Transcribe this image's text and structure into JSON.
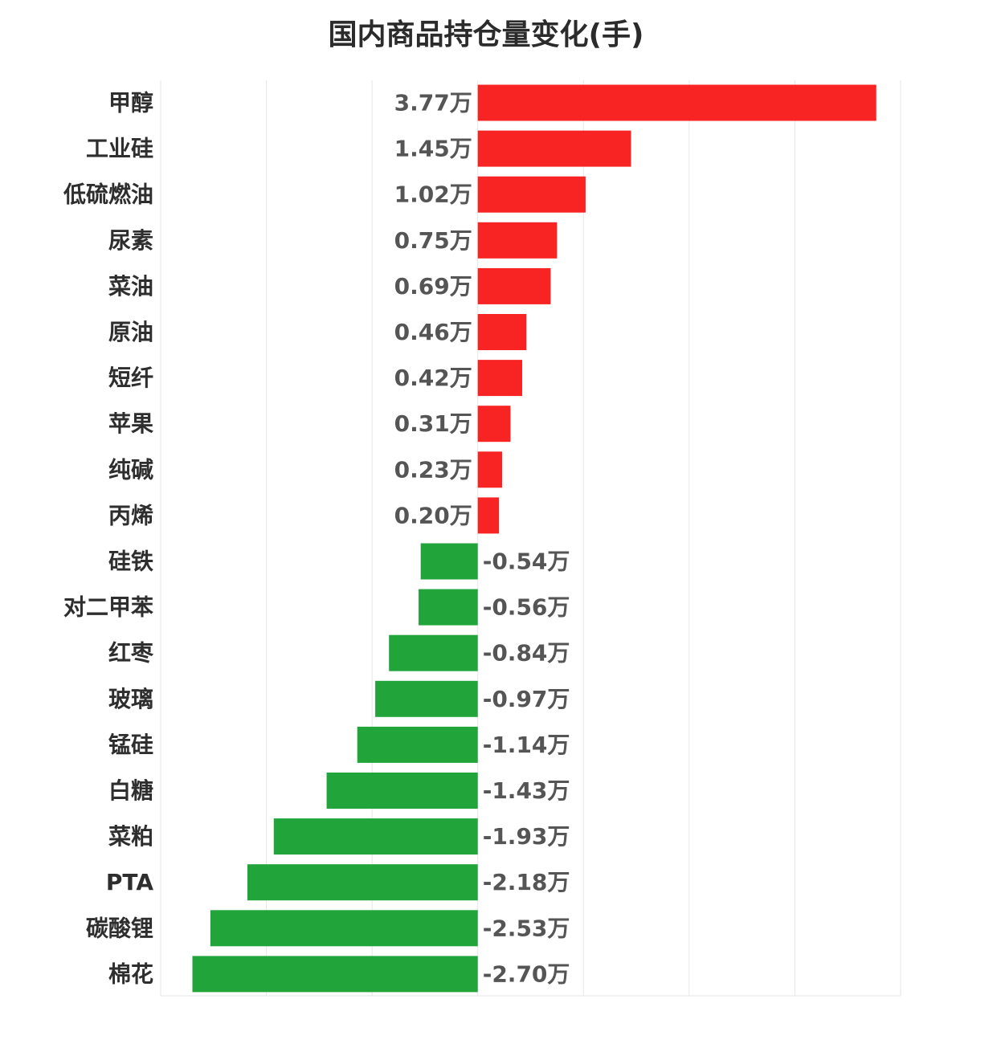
{
  "chart_data": {
    "type": "bar",
    "orientation": "horizontal",
    "title": "国内商品持仓量变化(手)",
    "value_suffix": "万",
    "categories": [
      "甲醇",
      "工业硅",
      "低硫燃油",
      "尿素",
      "菜油",
      "原油",
      "短纤",
      "苹果",
      "纯碱",
      "丙烯",
      "硅铁",
      "对二甲苯",
      "红枣",
      "玻璃",
      "锰硅",
      "白糖",
      "菜粕",
      "PTA",
      "碳酸锂",
      "棉花"
    ],
    "values": [
      3.77,
      1.45,
      1.02,
      0.75,
      0.69,
      0.46,
      0.42,
      0.31,
      0.23,
      0.2,
      -0.54,
      -0.56,
      -0.84,
      -0.97,
      -1.14,
      -1.43,
      -1.93,
      -2.18,
      -2.53,
      -2.7
    ],
    "value_labels": [
      "3.77万",
      "1.45万",
      "1.02万",
      "0.75万",
      "0.69万",
      "0.46万",
      "0.42万",
      "0.31万",
      "0.23万",
      "0.20万",
      "-0.54万",
      "-0.56万",
      "-0.84万",
      "-0.97万",
      "-1.14万",
      "-1.43万",
      "-1.93万",
      "-2.18万",
      "-2.53万",
      "-2.70万"
    ],
    "xlim": [
      -3,
      4
    ],
    "grid": true,
    "xgrid_ticks": [
      -3,
      -2,
      -1,
      0,
      1,
      2,
      3,
      4
    ],
    "colors": {
      "positive": "#f82424",
      "negative": "#21a53b",
      "grid": "#e6e6e6"
    }
  }
}
